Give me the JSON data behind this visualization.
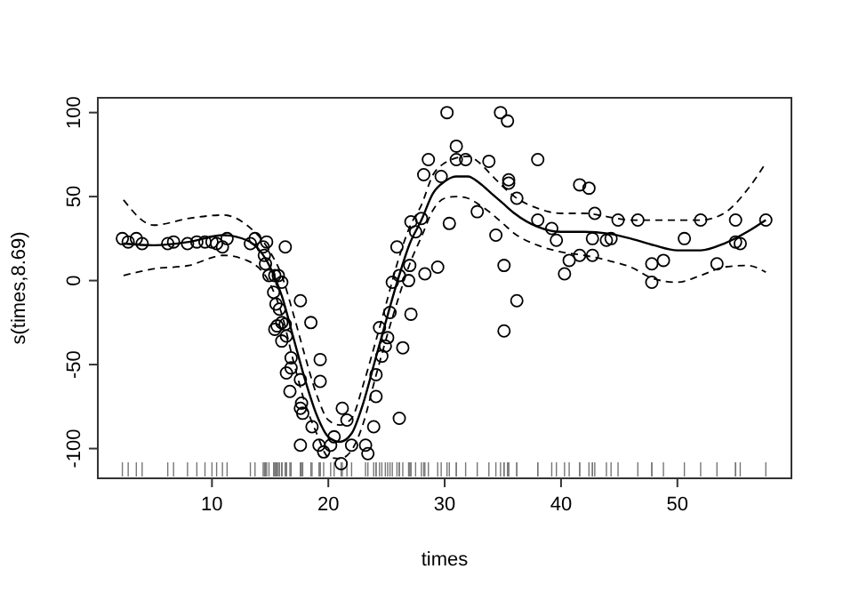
{
  "chart_data": {
    "type": "scatter",
    "xlabel": "times",
    "ylabel": "s(times,8.69)",
    "xlim": [
      0.19,
      59.8
    ],
    "ylim": [
      -117.7,
      108.8
    ],
    "xticks": [
      10,
      20,
      30,
      40,
      50
    ],
    "yticks": [
      -100,
      -50,
      0,
      50,
      100
    ],
    "grid": false,
    "series": [
      {
        "color": "#000000",
        "marker": "circle",
        "x": [
          2.3,
          2.8,
          3.5,
          4.0,
          6.2,
          6.7,
          7.9,
          8.7,
          9.4,
          10.0,
          10.4,
          10.9,
          11.3,
          13.3,
          13.7,
          14.4,
          14.7,
          14.5,
          14.6,
          14.9,
          15.4,
          15.7,
          16.0,
          16.3,
          15.3,
          15.5,
          15.8,
          15.4,
          15.6,
          16.0,
          16.3,
          16.0,
          16.4,
          16.8,
          16.4,
          16.8,
          16.7,
          17.6,
          17.6,
          17.6,
          17.8,
          17.7,
          17.6,
          18.5,
          18.6,
          19.3,
          19.3,
          19.2,
          19.6,
          20.2,
          20.5,
          21.2,
          21.6,
          21.1,
          22.0,
          23.2,
          23.4,
          23.9,
          24.1,
          24.1,
          24.6,
          24.4,
          24.9,
          25.1,
          25.3,
          25.5,
          25.9,
          26.1,
          26.1,
          26.4,
          26.9,
          27.0,
          27.1,
          27.1,
          27.5,
          28.0,
          28.2,
          28.6,
          28.3,
          29.4,
          29.7,
          30.2,
          30.4,
          31.0,
          31.0,
          31.8,
          32.8,
          33.8,
          34.4,
          34.8,
          35.4,
          35.5,
          35.5,
          35.1,
          36.2,
          36.2,
          35.1,
          38.0,
          38.0,
          39.2,
          39.6,
          40.3,
          40.7,
          41.6,
          42.4,
          41.6,
          42.9,
          42.7,
          42.7,
          43.9,
          44.3,
          44.9,
          46.6,
          47.8,
          47.8,
          48.8,
          50.6,
          52.0,
          53.4,
          55.0,
          55.0,
          55.4,
          57.6
        ],
        "values": [
          25,
          23,
          25,
          22,
          22,
          23,
          22,
          23,
          23,
          23,
          22,
          20,
          25,
          22,
          25,
          20,
          23,
          15,
          10,
          3,
          3,
          3,
          -1,
          20,
          -7,
          -14,
          -17,
          -29,
          -27,
          -25,
          -26,
          -36,
          -33,
          -46,
          -55,
          -52,
          -66,
          -12,
          -59,
          -76,
          -79,
          -73,
          -98,
          -25,
          -87,
          -47,
          -60,
          -98,
          -102,
          -98,
          -93,
          -76,
          -83,
          -109,
          -98,
          -98,
          -103,
          -87,
          -69,
          -56,
          -45,
          -28,
          -39,
          -34,
          -19,
          -1,
          20,
          3,
          -82,
          -40,
          0,
          9,
          -20,
          35,
          29,
          37,
          63,
          72,
          4,
          8,
          62,
          100,
          34,
          80,
          72,
          72,
          41,
          71,
          27,
          100,
          95,
          60,
          58,
          9,
          49,
          -12,
          -30,
          72,
          36,
          31,
          24,
          4,
          12,
          57,
          55,
          15,
          40,
          25,
          15,
          24,
          25,
          36,
          36,
          10,
          -1,
          12,
          25,
          36,
          10,
          36,
          23,
          22,
          36
        ]
      },
      {
        "type": "line",
        "color": "#000000",
        "line_style": "solid",
        "x": [
          2.4,
          5,
          8,
          11,
          13,
          15,
          16,
          17,
          18,
          19,
          20,
          21,
          22,
          23,
          24,
          25,
          26,
          27,
          28,
          29,
          30,
          31,
          32,
          33,
          34,
          35,
          36,
          38,
          40,
          42,
          44,
          46,
          48,
          50,
          52,
          54,
          56,
          57.6
        ],
        "values": [
          22,
          21,
          23,
          27,
          24,
          8,
          -9,
          -34,
          -59,
          -80,
          -93,
          -96,
          -91,
          -73,
          -48,
          -23,
          1,
          22,
          36,
          52,
          59,
          62,
          62,
          58,
          52,
          46,
          40,
          32,
          29,
          29,
          28,
          25,
          21,
          18,
          18,
          22,
          29,
          36
        ]
      },
      {
        "type": "line",
        "color": "#000000",
        "line_style": "dashed",
        "x": [
          2.4,
          5,
          8,
          11,
          13,
          15,
          16,
          17,
          18,
          19,
          20,
          21,
          22,
          23,
          24,
          25,
          26,
          27,
          28,
          29,
          30,
          31,
          32,
          33,
          34,
          35,
          36,
          38,
          40,
          42,
          44,
          46,
          48,
          50,
          52,
          54,
          56,
          57.6
        ],
        "values": [
          48,
          33,
          37,
          39,
          33,
          17,
          3,
          -20,
          -45,
          -68,
          -83,
          -86,
          -82,
          -62,
          -38,
          -13,
          12,
          32,
          45,
          63,
          70,
          73,
          74,
          70,
          63,
          56,
          50,
          43,
          40,
          40,
          38,
          36,
          36,
          36,
          36,
          40,
          54,
          70
        ]
      },
      {
        "type": "line",
        "color": "#000000",
        "line_style": "dashed",
        "x": [
          2.4,
          5,
          8,
          11,
          13,
          15,
          16,
          17,
          18,
          19,
          20,
          21,
          22,
          23,
          24,
          25,
          26,
          27,
          28,
          29,
          30,
          31,
          32,
          33,
          34,
          35,
          36,
          38,
          40,
          42,
          44,
          46,
          48,
          50,
          52,
          54,
          56,
          57.6
        ],
        "values": [
          3,
          7,
          9,
          15,
          12,
          -2,
          -20,
          -48,
          -73,
          -91,
          -105,
          -106,
          -101,
          -85,
          -59,
          -34,
          -11,
          10,
          26,
          42,
          49,
          50,
          49,
          45,
          40,
          34,
          28,
          21,
          17,
          15,
          12,
          8,
          1,
          -1,
          3,
          8,
          9,
          5
        ]
      }
    ]
  }
}
